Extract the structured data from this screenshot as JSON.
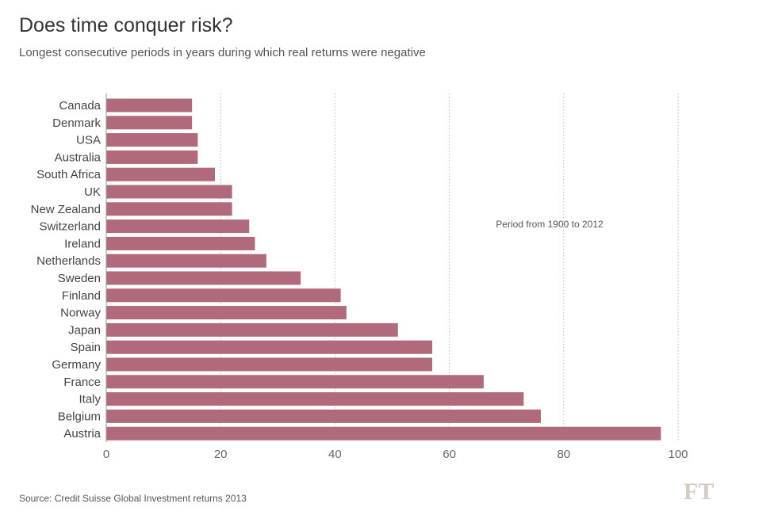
{
  "chart_data": {
    "type": "bar",
    "orientation": "horizontal",
    "title": "Does time conquer risk?",
    "subtitle": "Longest consecutive periods in years during which real returns were negative",
    "annotation": "Period from 1900 to 2012",
    "source": "Source: Credit Suisse Global Investment returns 2013",
    "categories": [
      "Canada",
      "Denmark",
      "USA",
      "Australia",
      "South Africa",
      "UK",
      "New Zealand",
      "Switzerland",
      "Ireland",
      "Netherlands",
      "Sweden",
      "Finland",
      "Norway",
      "Japan",
      "Spain",
      "Germany",
      "France",
      "Italy",
      "Belgium",
      "Austria"
    ],
    "values": [
      15,
      15,
      16,
      16,
      19,
      22,
      22,
      25,
      26,
      28,
      34,
      41,
      42,
      51,
      57,
      57,
      66,
      73,
      76,
      97
    ],
    "xlim": [
      0,
      100
    ],
    "xticks": [
      "0",
      "20",
      "40",
      "60",
      "80",
      "100"
    ],
    "grid": true,
    "bar_color": "#b06a7c"
  },
  "logo": "FT"
}
